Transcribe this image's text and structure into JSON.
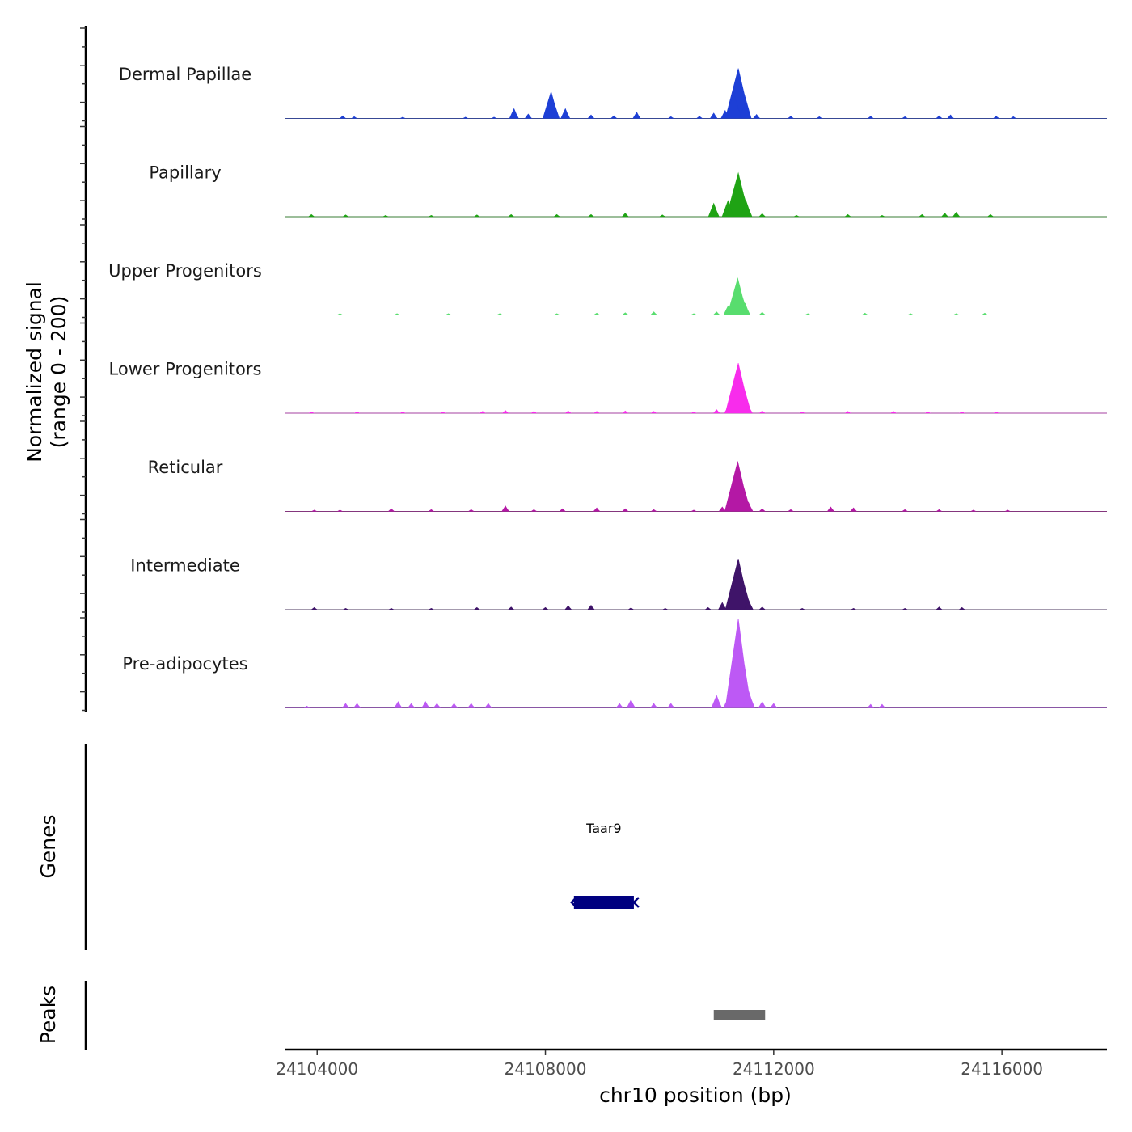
{
  "chart_data": {
    "type": "area",
    "title": "",
    "xlabel": "chr10 position (bp)",
    "ylabel": "Normalized signal\n(range 0 - 200)",
    "xlim": [
      24103430,
      24117840
    ],
    "ylim": [
      0,
      200
    ],
    "x_ticks": [
      24104000,
      24108000,
      24112000,
      24116000
    ],
    "x_tick_labels": [
      "24104000",
      "24108000",
      "24112000",
      "24116000"
    ],
    "tracks": [
      {
        "name": "Dermal Papillae",
        "color": "#1d3fd6",
        "peaks": [
          [
            24104450,
            6
          ],
          [
            24104650,
            4
          ],
          [
            24105500,
            3
          ],
          [
            24106600,
            3
          ],
          [
            24107100,
            3
          ],
          [
            24107450,
            22
          ],
          [
            24107700,
            10
          ],
          [
            24108100,
            60
          ],
          [
            24108350,
            22
          ],
          [
            24108800,
            8
          ],
          [
            24109200,
            6
          ],
          [
            24109600,
            14
          ],
          [
            24110200,
            4
          ],
          [
            24110700,
            5
          ],
          [
            24110950,
            12
          ],
          [
            24111150,
            18
          ],
          [
            24111300,
            58
          ],
          [
            24111380,
            112
          ],
          [
            24111500,
            34
          ],
          [
            24111700,
            9
          ],
          [
            24112300,
            5
          ],
          [
            24112800,
            4
          ],
          [
            24113700,
            5
          ],
          [
            24114300,
            4
          ],
          [
            24114900,
            6
          ],
          [
            24115100,
            8
          ],
          [
            24115900,
            5
          ],
          [
            24116200,
            4
          ]
        ]
      },
      {
        "name": "Papillary",
        "color": "#1fa314",
        "peaks": [
          [
            24103900,
            5
          ],
          [
            24104500,
            4
          ],
          [
            24105200,
            3
          ],
          [
            24106000,
            3
          ],
          [
            24106800,
            4
          ],
          [
            24107400,
            5
          ],
          [
            24108200,
            5
          ],
          [
            24108800,
            5
          ],
          [
            24109400,
            8
          ],
          [
            24110050,
            4
          ],
          [
            24110950,
            30
          ],
          [
            24111200,
            36
          ],
          [
            24111380,
            98
          ],
          [
            24111520,
            34
          ],
          [
            24111800,
            7
          ],
          [
            24112400,
            3
          ],
          [
            24113300,
            5
          ],
          [
            24113900,
            3
          ],
          [
            24114600,
            5
          ],
          [
            24115000,
            8
          ],
          [
            24115200,
            10
          ],
          [
            24115800,
            5
          ]
        ]
      },
      {
        "name": "Upper Progenitors",
        "color": "#58dd6e",
        "peaks": [
          [
            24104400,
            3
          ],
          [
            24105400,
            3
          ],
          [
            24106300,
            3
          ],
          [
            24107200,
            3
          ],
          [
            24108200,
            3
          ],
          [
            24108900,
            4
          ],
          [
            24109400,
            5
          ],
          [
            24109900,
            7
          ],
          [
            24110600,
            3
          ],
          [
            24111000,
            7
          ],
          [
            24111200,
            20
          ],
          [
            24111370,
            82
          ],
          [
            24111500,
            26
          ],
          [
            24111800,
            6
          ],
          [
            24112600,
            3
          ],
          [
            24113600,
            4
          ],
          [
            24114400,
            3
          ],
          [
            24115200,
            3
          ],
          [
            24115700,
            4
          ]
        ]
      },
      {
        "name": "Lower Progenitors",
        "color": "#f82cec",
        "peaks": [
          [
            24103900,
            3
          ],
          [
            24104700,
            3
          ],
          [
            24105500,
            3
          ],
          [
            24106200,
            3
          ],
          [
            24106900,
            4
          ],
          [
            24107300,
            6
          ],
          [
            24107800,
            4
          ],
          [
            24108400,
            5
          ],
          [
            24108900,
            4
          ],
          [
            24109400,
            5
          ],
          [
            24109900,
            4
          ],
          [
            24110600,
            3
          ],
          [
            24111000,
            8
          ],
          [
            24111200,
            14
          ],
          [
            24111380,
            112
          ],
          [
            24111560,
            16
          ],
          [
            24111800,
            5
          ],
          [
            24112500,
            3
          ],
          [
            24113300,
            4
          ],
          [
            24114100,
            4
          ],
          [
            24114700,
            3
          ],
          [
            24115300,
            3
          ],
          [
            24115900,
            3
          ]
        ]
      },
      {
        "name": "Reticular",
        "color": "#b418a5",
        "peaks": [
          [
            24103950,
            3
          ],
          [
            24104400,
            3
          ],
          [
            24105300,
            6
          ],
          [
            24106000,
            4
          ],
          [
            24106700,
            4
          ],
          [
            24107300,
            12
          ],
          [
            24107800,
            4
          ],
          [
            24108300,
            6
          ],
          [
            24108900,
            8
          ],
          [
            24109400,
            6
          ],
          [
            24109900,
            4
          ],
          [
            24110600,
            3
          ],
          [
            24111100,
            10
          ],
          [
            24111370,
            112
          ],
          [
            24111560,
            20
          ],
          [
            24111800,
            6
          ],
          [
            24112300,
            4
          ],
          [
            24113000,
            10
          ],
          [
            24113400,
            8
          ],
          [
            24114300,
            4
          ],
          [
            24114900,
            4
          ],
          [
            24115500,
            3
          ],
          [
            24116100,
            3
          ]
        ]
      },
      {
        "name": "Intermediate",
        "color": "#3f1469",
        "peaks": [
          [
            24103950,
            5
          ],
          [
            24104500,
            3
          ],
          [
            24105300,
            3
          ],
          [
            24106000,
            3
          ],
          [
            24106800,
            5
          ],
          [
            24107400,
            6
          ],
          [
            24108000,
            5
          ],
          [
            24108400,
            9
          ],
          [
            24108800,
            10
          ],
          [
            24109500,
            4
          ],
          [
            24110100,
            3
          ],
          [
            24110850,
            5
          ],
          [
            24111100,
            16
          ],
          [
            24111380,
            114
          ],
          [
            24111560,
            22
          ],
          [
            24111800,
            6
          ],
          [
            24112500,
            3
          ],
          [
            24113400,
            3
          ],
          [
            24114300,
            3
          ],
          [
            24114900,
            6
          ],
          [
            24115300,
            5
          ]
        ]
      },
      {
        "name": "Pre-adipocytes",
        "color": "#bd59f5",
        "peaks": [
          [
            24103820,
            4
          ],
          [
            24104500,
            10
          ],
          [
            24104700,
            10
          ],
          [
            24105420,
            14
          ],
          [
            24105650,
            10
          ],
          [
            24105900,
            14
          ],
          [
            24106100,
            10
          ],
          [
            24106400,
            10
          ],
          [
            24106700,
            10
          ],
          [
            24107000,
            10
          ],
          [
            24109300,
            10
          ],
          [
            24109500,
            18
          ],
          [
            24109900,
            10
          ],
          [
            24110200,
            10
          ],
          [
            24111000,
            28
          ],
          [
            24111200,
            22
          ],
          [
            24111380,
            200
          ],
          [
            24111560,
            38
          ],
          [
            24111800,
            14
          ],
          [
            24112000,
            10
          ],
          [
            24113700,
            8
          ],
          [
            24113900,
            8
          ]
        ]
      }
    ],
    "genes": [
      {
        "name": "Taar9",
        "start": 24108500,
        "end": 24109550,
        "strand": "-",
        "color": "#000080"
      }
    ],
    "peaks_track": [
      {
        "start": 24110950,
        "end": 24111850,
        "color": "#696969"
      }
    ],
    "panel_labels": {
      "genes": "Genes",
      "peaks": "Peaks"
    }
  }
}
